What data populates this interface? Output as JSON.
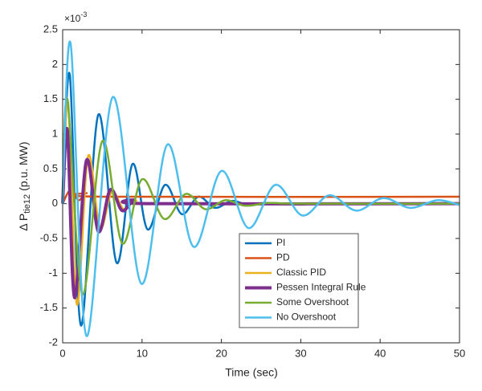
{
  "chart_data": {
    "type": "line",
    "xlabel": "Time (sec)",
    "ylabel": {
      "main": "Δ P",
      "sub": "tie12",
      "unit": "(p.u. MW)"
    },
    "y_multiplier": {
      "base": "×10",
      "exponent": "-3"
    },
    "xlim": [
      0,
      50
    ],
    "xticks": [
      0,
      10,
      20,
      30,
      40,
      50
    ],
    "ylim": [
      -2,
      2.5
    ],
    "yticks": [
      -2,
      -1.5,
      -1,
      -0.5,
      0,
      0.5,
      1,
      1.5,
      2,
      2.5
    ],
    "legend": "inside-lower-center",
    "series": [
      {
        "name": "PI",
        "color": "#0072bd",
        "width": 2.5,
        "x": [
          0,
          0.9,
          2.3,
          4.5,
          6.8,
          8.8,
          10.7,
          12.9,
          15,
          17.1,
          19.2,
          21.3,
          23.4,
          25.5,
          30,
          50
        ],
        "values": [
          0,
          1.85,
          -1.75,
          1.28,
          -0.85,
          0.57,
          -0.37,
          0.27,
          -0.15,
          0.1,
          -0.06,
          0.04,
          -0.02,
          0.01,
          0,
          0
        ]
      },
      {
        "name": "PD",
        "color": "#d95319",
        "width": 2.5,
        "x": [
          0,
          1,
          2,
          3,
          5,
          50
        ],
        "values": [
          0,
          0.2,
          0.05,
          0.15,
          0.1,
          0.1
        ]
      },
      {
        "name": "Classic PID",
        "color": "#edb120",
        "width": 2.5,
        "x": [
          0,
          0.7,
          1.8,
          3.2,
          4.7,
          6.2,
          7.7,
          9.2,
          12,
          50
        ],
        "values": [
          0,
          1.45,
          -1.45,
          0.68,
          -0.35,
          0.17,
          -0.08,
          0.04,
          0,
          0
        ]
      },
      {
        "name": "Pessen Integral Rule",
        "color": "#7e2f8e",
        "width": 4,
        "x": [
          0,
          0.6,
          1.5,
          3,
          4.5,
          6,
          7.5,
          9,
          11,
          50
        ],
        "values": [
          0,
          1.05,
          -1.35,
          0.62,
          -0.4,
          0.2,
          -0.1,
          0.05,
          0,
          0
        ]
      },
      {
        "name": "Some Overshoot",
        "color": "#77ac30",
        "width": 2.5,
        "x": [
          0,
          0.6,
          2.5,
          5,
          7.5,
          10,
          12.8,
          15.5,
          18,
          20.5,
          23,
          26,
          30,
          50
        ],
        "values": [
          0,
          1.5,
          -1.3,
          0.9,
          -0.57,
          0.35,
          -0.22,
          0.14,
          -0.08,
          0.05,
          -0.03,
          0.01,
          0,
          0
        ]
      },
      {
        "name": "No Overshoot",
        "color": "#4dbeee",
        "width": 2.5,
        "x": [
          0,
          1,
          3,
          6.3,
          9.9,
          13.2,
          16.5,
          20,
          23.4,
          26.8,
          30.2,
          33.6,
          37,
          40.4,
          43.8,
          47.2,
          50
        ],
        "values": [
          0,
          2.3,
          -1.9,
          1.53,
          -1.15,
          0.85,
          -0.62,
          0.47,
          -0.35,
          0.27,
          -0.17,
          0.12,
          -0.1,
          0.08,
          -0.06,
          0.05,
          -0.02
        ]
      }
    ]
  }
}
